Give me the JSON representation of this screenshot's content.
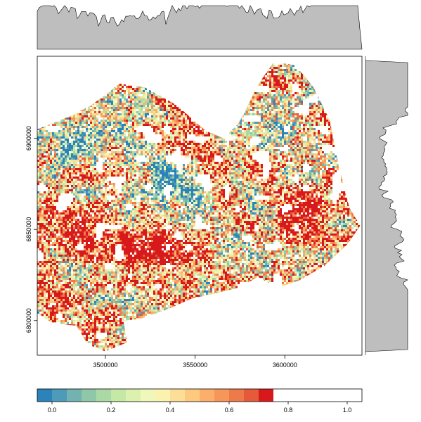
{
  "chart_data": {
    "type": "heatmap",
    "title": "",
    "xlabel": "",
    "ylabel": "",
    "x_axis": {
      "range": [
        3462000,
        3643000
      ],
      "ticks": [
        {
          "value": 3500000,
          "label": "3500000"
        },
        {
          "value": 3550000,
          "label": "3550000"
        },
        {
          "value": 3600000,
          "label": "3600000"
        }
      ]
    },
    "y_axis": {
      "range": [
        6781000,
        6945000
      ],
      "ticks": [
        {
          "value": 6800000,
          "label": "6800000"
        },
        {
          "value": 6850000,
          "label": "6850000"
        },
        {
          "value": 6900000,
          "label": "6900000"
        }
      ]
    },
    "value_range": [
      -0.05,
      1.05
    ],
    "colorbar": {
      "breaks": [
        -0.05,
        0.0,
        0.05,
        0.1,
        0.15,
        0.2,
        0.25,
        0.3,
        0.35,
        0.4,
        0.45,
        0.5,
        0.55,
        0.6,
        0.65,
        0.7,
        0.75,
        0.8,
        0.85,
        0.9,
        0.95,
        1.0,
        1.05
      ],
      "colors": [
        "#2B83BA",
        "#4E9BB9",
        "#72B2B0",
        "#8FC8A8",
        "#AAD9A5",
        "#C5E8A4",
        "#DDF1AE",
        "#EFF8BA",
        "#FBF2B0",
        "#FDDE97",
        "#FDC97F",
        "#FCAE6B",
        "#F79659",
        "#EE7A4A",
        "#E45A3B",
        "#D7191C"
      ],
      "ticks": [
        {
          "value": 0.0,
          "label": "0.0"
        },
        {
          "value": 0.2,
          "label": "0.2"
        },
        {
          "value": 0.4,
          "label": "0.4"
        },
        {
          "value": 0.6,
          "label": "0.6"
        },
        {
          "value": 0.8,
          "label": "0.8"
        },
        {
          "value": 1.0,
          "label": "1.0"
        }
      ]
    },
    "region_outline": [
      [
        3462000,
        6905000
      ],
      [
        3480000,
        6912000
      ],
      [
        3492000,
        6918000
      ],
      [
        3508000,
        6930000
      ],
      [
        3522000,
        6928000
      ],
      [
        3540000,
        6918000
      ],
      [
        3556000,
        6904000
      ],
      [
        3566000,
        6900000
      ],
      [
        3574000,
        6908000
      ],
      [
        3578000,
        6915000
      ],
      [
        3584000,
        6928000
      ],
      [
        3594000,
        6942000
      ],
      [
        3606000,
        6940000
      ],
      [
        3616000,
        6928000
      ],
      [
        3625000,
        6910000
      ],
      [
        3630000,
        6885000
      ],
      [
        3636000,
        6862000
      ],
      [
        3642000,
        6852000
      ],
      [
        3635000,
        6842000
      ],
      [
        3622000,
        6830000
      ],
      [
        3608000,
        6822000
      ],
      [
        3596000,
        6818000
      ],
      [
        3585000,
        6824000
      ],
      [
        3574000,
        6818000
      ],
      [
        3562000,
        6815000
      ],
      [
        3548000,
        6812000
      ],
      [
        3534000,
        6806000
      ],
      [
        3520000,
        6801000
      ],
      [
        3510000,
        6800000
      ],
      [
        3512000,
        6788000
      ],
      [
        3500000,
        6783000
      ],
      [
        3490000,
        6787000
      ],
      [
        3484000,
        6797000
      ],
      [
        3470000,
        6799000
      ],
      [
        3462000,
        6804000
      ],
      [
        3460000,
        6828000
      ],
      [
        3462000,
        6860000
      ]
    ],
    "hot_spots": [
      {
        "x": 3508000,
        "y": 6840000,
        "value": 0.95
      },
      {
        "x": 3528000,
        "y": 6838000,
        "value": 0.88
      },
      {
        "x": 3478000,
        "y": 6855000,
        "value": 0.85
      },
      {
        "x": 3545000,
        "y": 6905000,
        "value": 0.85
      },
      {
        "x": 3472000,
        "y": 6815000,
        "value": 0.82
      },
      {
        "x": 3612000,
        "y": 6858000,
        "value": 0.8
      }
    ],
    "cool_spots": [
      {
        "x": 3478000,
        "y": 6895000,
        "value": 0.1
      },
      {
        "x": 3502000,
        "y": 6908000,
        "value": 0.15
      },
      {
        "x": 3534000,
        "y": 6880000,
        "value": 0.2
      },
      {
        "x": 3552000,
        "y": 6872000,
        "value": 0.25
      },
      {
        "x": 3594000,
        "y": 6905000,
        "value": 0.3
      }
    ],
    "marginal_top": {
      "type": "area",
      "fill": "#BEBEBE",
      "stroke": "#000000"
    },
    "marginal_right": {
      "type": "area",
      "fill": "#BEBEBE",
      "stroke": "#000000"
    }
  }
}
